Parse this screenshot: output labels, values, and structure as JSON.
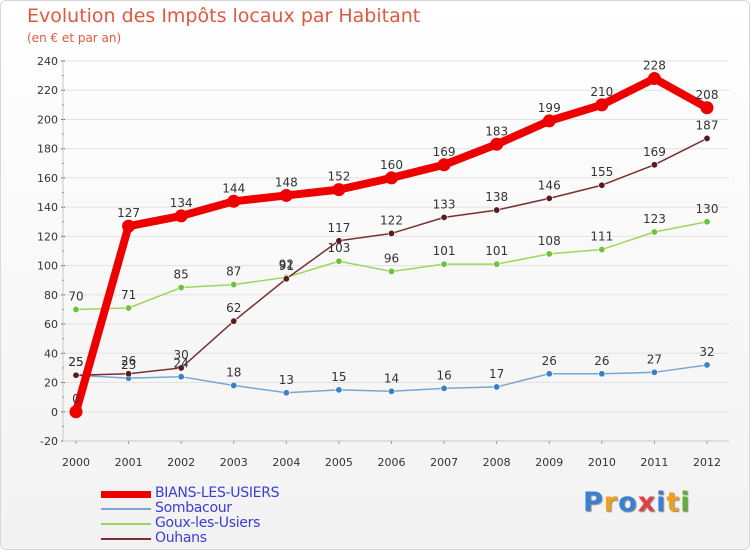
{
  "title": "Evolution des Impôts locaux par Habitant",
  "subtitle": "(en € et par an)",
  "brand": {
    "text": "Proxiti",
    "letter_colors": [
      "#3a7fd0",
      "#f0a020",
      "#3a7fd0",
      "#e04040",
      "#3a7fd0",
      "#f0a020",
      "#60b030"
    ]
  },
  "chart_data": {
    "type": "line",
    "title": "Evolution des Impôts locaux par Habitant",
    "subtitle": "(en € et par an)",
    "xlabel": "",
    "ylabel": "",
    "categories": [
      "2000",
      "2001",
      "2002",
      "2003",
      "2004",
      "2005",
      "2006",
      "2007",
      "2008",
      "2009",
      "2010",
      "2011",
      "2012"
    ],
    "ylim": [
      -20,
      240
    ],
    "yticks": [
      "-20",
      "0",
      "20",
      "40",
      "60",
      "80",
      "100",
      "120",
      "140",
      "160",
      "180",
      "200",
      "220",
      "240"
    ],
    "grid": "horizontal",
    "legend_position": "bottom-left",
    "series": [
      {
        "name": "BIANS-LES-USIERS",
        "color": "#ee0000",
        "marker": "#ee0000",
        "weight": "thick",
        "values": [
          0,
          127,
          134,
          144,
          148,
          152,
          160,
          169,
          183,
          199,
          210,
          228,
          208
        ],
        "labels": [
          "0",
          "127",
          "134",
          "144",
          "148",
          "152",
          "160",
          "169",
          "183",
          "199",
          "210",
          "228",
          "208"
        ]
      },
      {
        "name": "Sombacour",
        "color": "#7aa7cf",
        "marker": "#3a80c4",
        "weight": "thin",
        "values": [
          25,
          23,
          24,
          18,
          13,
          15,
          14,
          16,
          17,
          26,
          26,
          27,
          32
        ],
        "labels": [
          "25",
          "23",
          "24",
          "18",
          "13",
          "15",
          "14",
          "16",
          "17",
          "26",
          "26",
          "27",
          "32"
        ]
      },
      {
        "name": "Goux-les-Usiers",
        "color": "#9ed65a",
        "marker": "#6cc23a",
        "weight": "thin",
        "values": [
          70,
          71,
          85,
          87,
          92,
          103,
          96,
          101,
          101,
          108,
          111,
          123,
          130
        ],
        "labels": [
          "70",
          "71",
          "85",
          "87",
          "92",
          "103",
          "96",
          "101",
          "101",
          "108",
          "111",
          "123",
          "130"
        ]
      },
      {
        "name": "Ouhans",
        "color": "#7a3030",
        "marker": "#5a1a1a",
        "weight": "thin",
        "values": [
          25,
          26,
          30,
          62,
          91,
          117,
          122,
          133,
          138,
          146,
          155,
          169,
          187
        ],
        "labels": [
          "25",
          "26",
          "30",
          "62",
          "91",
          "117",
          "122",
          "133",
          "138",
          "146",
          "155",
          "169",
          "187"
        ]
      }
    ]
  }
}
